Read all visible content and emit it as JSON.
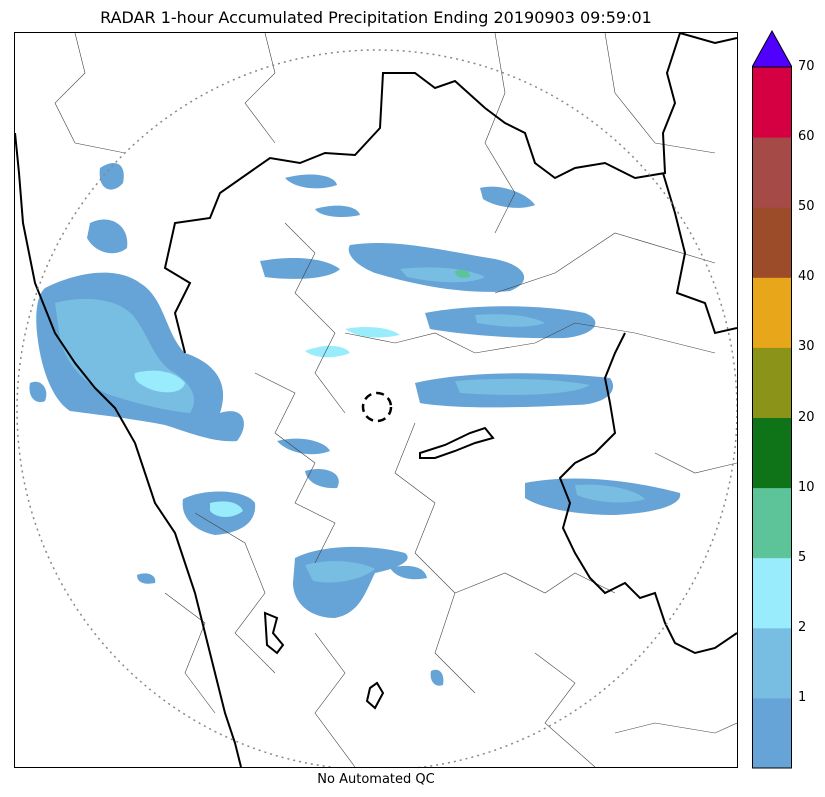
{
  "title": "RADAR 1-hour Accumulated Precipitation Ending 20190903 09:59:01",
  "footer_note": "No Automated QC",
  "colorbar": {
    "bins": [
      {
        "label": "",
        "color": "#66a3d6"
      },
      {
        "label": "1",
        "color": "#78bde2"
      },
      {
        "label": "2",
        "color": "#98ecfb"
      },
      {
        "label": "5",
        "color": "#5dc49a"
      },
      {
        "label": "10",
        "color": "#0f7417"
      },
      {
        "label": "20",
        "color": "#8b9418"
      },
      {
        "label": "30",
        "color": "#e8a71b"
      },
      {
        "label": "40",
        "color": "#9c4c28"
      },
      {
        "label": "50",
        "color": "#a54a46"
      },
      {
        "label": "60",
        "color": "#d40042"
      }
    ],
    "top_label": "70",
    "extend_color": "#5000ff"
  },
  "map": {
    "range_ring": "dotted",
    "radar_marker": "dashed-circle",
    "coastline_color": "#000000",
    "state_border_color": "#000000",
    "district_border_color": "#444444"
  }
}
